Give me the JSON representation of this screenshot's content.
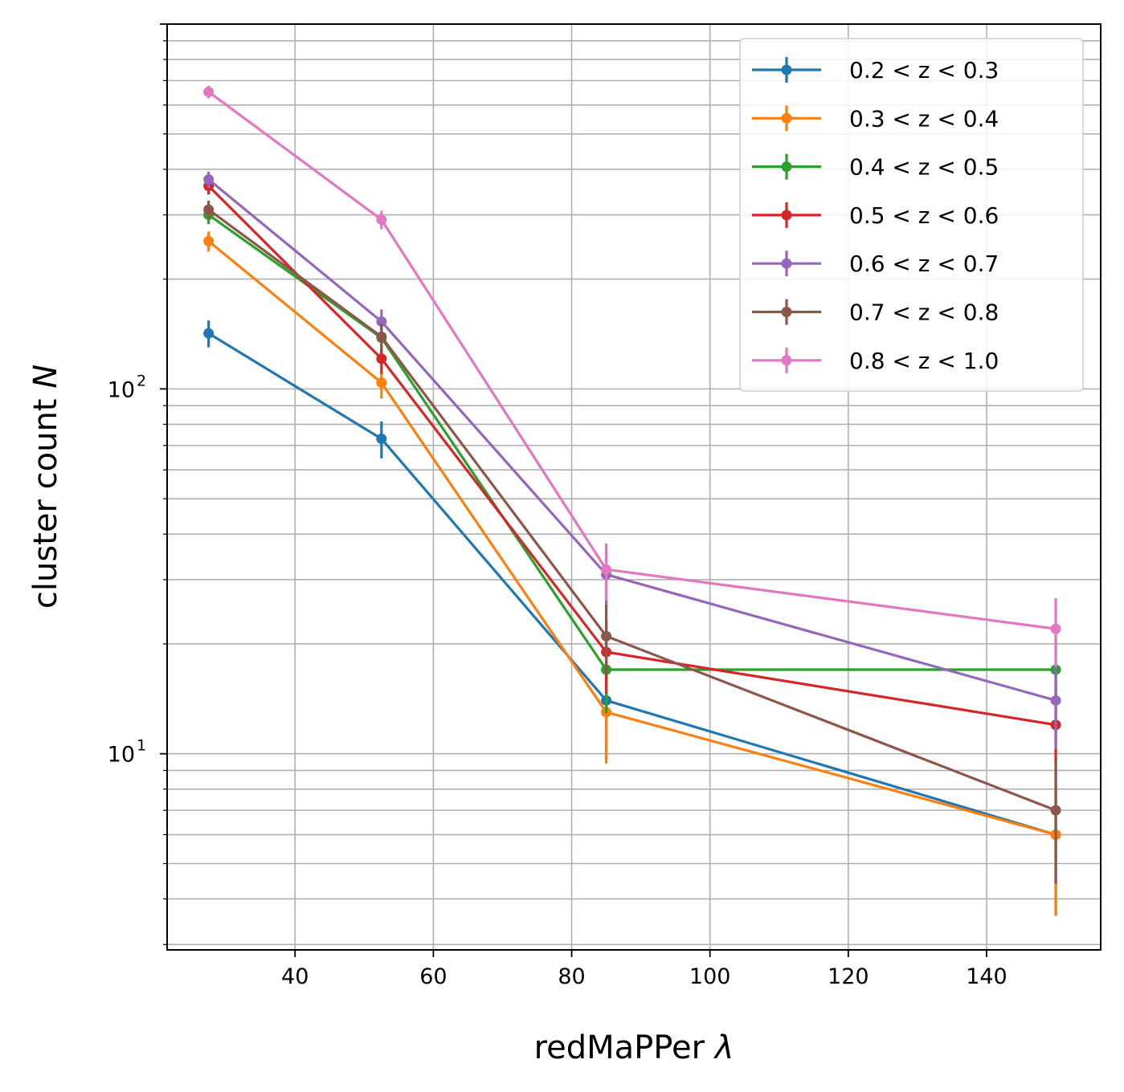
{
  "chart_data": {
    "type": "line",
    "xlabel": "redMaPPer",
    "xlabel_symbol": "λ",
    "ylabel": "cluster count",
    "ylabel_symbol": "N",
    "x_scale": "linear",
    "y_scale": "log",
    "xlim": [
      21.5,
      156.5
    ],
    "ylim": [
      2.9,
      1000
    ],
    "x_ticks": [
      40,
      60,
      80,
      100,
      120,
      140
    ],
    "x_tick_labels": [
      "40",
      "60",
      "80",
      "100",
      "120",
      "140"
    ],
    "y_major_ticks": [
      10,
      100
    ],
    "y_tick_labels": [
      {
        "base": "10",
        "exp": "1"
      },
      {
        "base": "10",
        "exp": "2"
      }
    ],
    "grid": true,
    "grid_minor_y": true,
    "legend_position": "top-right",
    "x": [
      27.5,
      52.5,
      85,
      150
    ],
    "series": [
      {
        "name": "0.2 < z < 0.3",
        "color": "#1f77b4",
        "values": [
          142,
          73,
          14,
          6
        ],
        "errors": [
          12,
          8.5,
          3.7,
          2.4
        ]
      },
      {
        "name": "0.3 < z < 0.4",
        "color": "#ff7f0e",
        "values": [
          254,
          104,
          13,
          6
        ],
        "errors": [
          16,
          10,
          3.6,
          2.4
        ]
      },
      {
        "name": "0.4 < z < 0.5",
        "color": "#2ca02c",
        "values": [
          300,
          138,
          17,
          17
        ],
        "errors": [
          17,
          12,
          4.1,
          4.1
        ]
      },
      {
        "name": "0.5 < z < 0.6",
        "color": "#d62728",
        "values": [
          360,
          121,
          19,
          12
        ],
        "errors": [
          19,
          11,
          4.4,
          3.5
        ]
      },
      {
        "name": "0.6 < z < 0.7",
        "color": "#9467bd",
        "values": [
          375,
          153,
          31,
          14
        ],
        "errors": [
          19,
          12,
          5.6,
          3.7
        ]
      },
      {
        "name": "0.7 < z < 0.8",
        "color": "#8c564b",
        "values": [
          310,
          139,
          21,
          7
        ],
        "errors": [
          18,
          12,
          4.6,
          2.6
        ]
      },
      {
        "name": "0.8 < z < 1.0",
        "color": "#e377c2",
        "values": [
          652,
          291,
          32,
          22
        ],
        "errors": [
          26,
          17,
          5.7,
          4.7
        ]
      }
    ]
  }
}
